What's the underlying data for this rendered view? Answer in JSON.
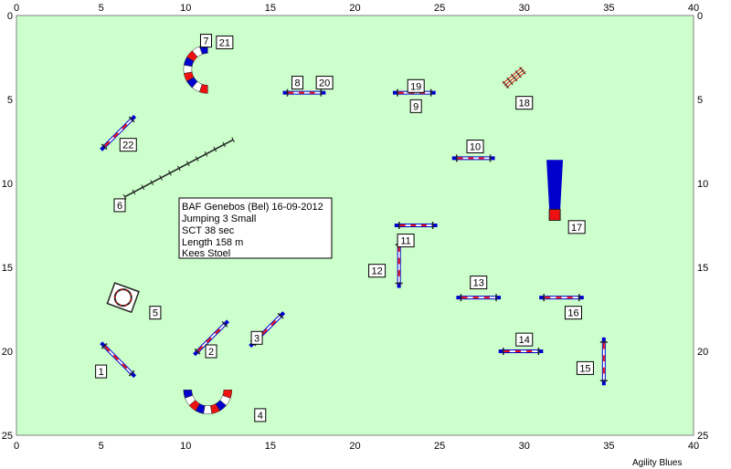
{
  "field": {
    "background_color": "#ccffcc",
    "x_range": [
      0,
      40
    ],
    "y_range": [
      0,
      25
    ],
    "x_ticks": [
      "0",
      "5",
      "10",
      "15",
      "20",
      "25",
      "30",
      "35",
      "40"
    ],
    "y_ticks": [
      "0",
      "5",
      "10",
      "15",
      "20",
      "25"
    ]
  },
  "info_box": {
    "lines": [
      "BAF Genebos (Bel) 16-09-2012",
      "Jumping 3 Small",
      "SCT 38 sec",
      "Length 158 m",
      "Kees Stoel"
    ]
  },
  "footer": {
    "label": "Agility Blues"
  },
  "colors": {
    "blue": "#0000cc",
    "red": "#ee1111",
    "dark": "#222222",
    "label_bg": "#ffffff"
  },
  "obstacles": [
    {
      "type": "jump",
      "center": [
        6.0,
        20.5
      ],
      "angle": 45,
      "length": 2.5
    },
    {
      "type": "jump",
      "center": [
        14.8,
        18.7
      ],
      "angle": -45,
      "length": 2.5
    },
    {
      "type": "jump",
      "center": [
        11.5,
        19.2
      ],
      "angle": -45,
      "length": 2.5
    },
    {
      "type": "jump",
      "center": [
        6.0,
        7.0
      ],
      "angle": -45,
      "length": 2.5
    },
    {
      "type": "jump",
      "center": [
        17.0,
        4.6
      ],
      "angle": 0,
      "length": 2.2
    },
    {
      "type": "jump",
      "center": [
        23.5,
        4.6
      ],
      "angle": 0,
      "length": 2.2
    },
    {
      "type": "jump",
      "center": [
        27.0,
        8.5
      ],
      "angle": 0,
      "length": 2.2
    },
    {
      "type": "jump",
      "center": [
        23.6,
        12.5
      ],
      "angle": 0,
      "length": 2.2
    },
    {
      "type": "jump",
      "center": [
        22.6,
        14.8
      ],
      "angle": 90,
      "length": 2.5
    },
    {
      "type": "jump",
      "center": [
        27.3,
        16.8
      ],
      "angle": 0,
      "length": 2.3
    },
    {
      "type": "jump",
      "center": [
        29.8,
        20.0
      ],
      "angle": 0,
      "length": 2.3
    },
    {
      "type": "jump",
      "center": [
        34.7,
        20.6
      ],
      "angle": 90,
      "length": 2.5
    },
    {
      "type": "jump",
      "center": [
        32.2,
        16.8
      ],
      "angle": 0,
      "length": 2.3
    },
    {
      "type": "walk",
      "from": [
        6.4,
        10.8
      ],
      "to": [
        12.8,
        7.4
      ]
    },
    {
      "type": "tire",
      "center": [
        6.3,
        16.8
      ]
    },
    {
      "type": "tunnel_c",
      "center": [
        11.3,
        3.2
      ],
      "orient": "left"
    },
    {
      "type": "tunnel_c",
      "center": [
        11.3,
        22.3
      ],
      "orient": "down"
    },
    {
      "type": "chute",
      "x": 31.8,
      "y_top": 8.6,
      "y_bottom": 12.2
    },
    {
      "type": "weave",
      "center": [
        29.4,
        3.7
      ]
    }
  ],
  "number_labels": [
    {
      "text": "1",
      "at": [
        5.0,
        21.2
      ]
    },
    {
      "text": "2",
      "at": [
        11.5,
        20.0
      ]
    },
    {
      "text": "3",
      "at": [
        14.2,
        19.2
      ]
    },
    {
      "text": "4",
      "at": [
        14.4,
        23.8
      ]
    },
    {
      "text": "5",
      "at": [
        8.2,
        17.7
      ]
    },
    {
      "text": "6",
      "at": [
        6.1,
        11.3
      ]
    },
    {
      "text": "7",
      "at": [
        11.2,
        1.5
      ]
    },
    {
      "text": "21",
      "at": [
        12.3,
        1.6
      ]
    },
    {
      "text": "8",
      "at": [
        16.6,
        4.0
      ]
    },
    {
      "text": "20",
      "at": [
        18.2,
        4.0
      ]
    },
    {
      "text": "19",
      "at": [
        23.6,
        4.2
      ]
    },
    {
      "text": "9",
      "at": [
        23.6,
        5.4
      ]
    },
    {
      "text": "18",
      "at": [
        30.0,
        5.2
      ]
    },
    {
      "text": "22",
      "at": [
        6.6,
        7.7
      ]
    },
    {
      "text": "10",
      "at": [
        27.1,
        7.8
      ]
    },
    {
      "text": "17",
      "at": [
        33.1,
        12.6
      ]
    },
    {
      "text": "11",
      "at": [
        23.0,
        13.4
      ]
    },
    {
      "text": "12",
      "at": [
        21.3,
        15.2
      ]
    },
    {
      "text": "13",
      "at": [
        27.3,
        15.9
      ]
    },
    {
      "text": "16",
      "at": [
        32.9,
        17.7
      ]
    },
    {
      "text": "14",
      "at": [
        30.0,
        19.3
      ]
    },
    {
      "text": "15",
      "at": [
        33.6,
        21.0
      ]
    }
  ]
}
